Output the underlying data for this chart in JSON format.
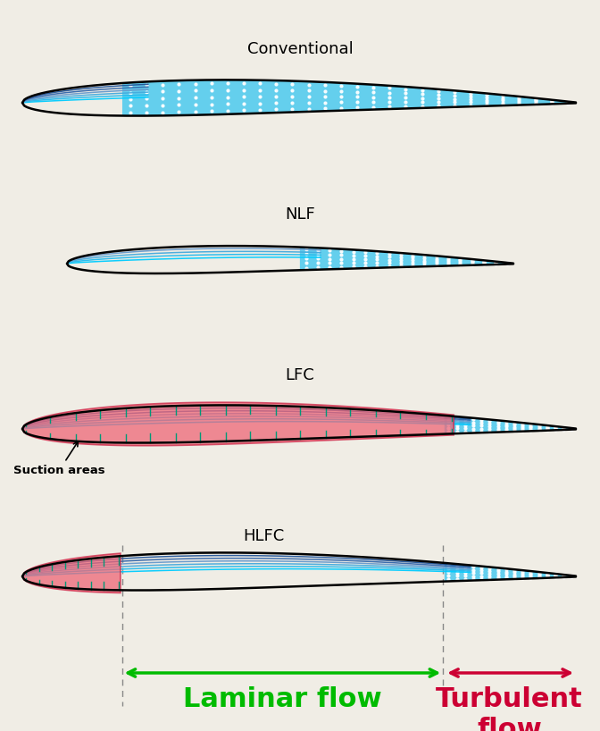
{
  "bg_color": "#f0ede5",
  "title": "Conventional",
  "nlf_label": "NLF",
  "lfc_label": "LFC",
  "hlfc_label": "HLFC",
  "suction_label": "Suction areas",
  "laminar_label": "Laminar flow",
  "turbulent_label": "Turbulent\nflow",
  "laminar_color": "#00bb00",
  "turbulent_color": "#cc0033",
  "dot_bg": "#55ccee",
  "dot_color": "white",
  "line_colors": [
    "#00ccff",
    "#22bbee",
    "#44aadd",
    "#6699cc",
    "#3366aa",
    "#225599"
  ],
  "pink_fill": "#ee6677",
  "pink_edge": "#cc2244",
  "tick_color": "#009977",
  "black": "#000000",
  "gray": "#888888"
}
